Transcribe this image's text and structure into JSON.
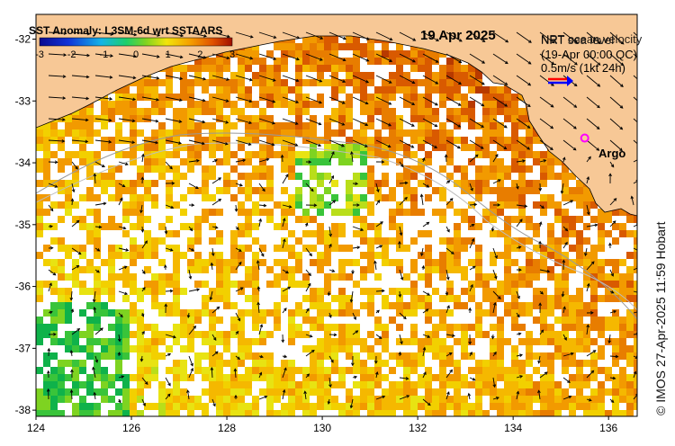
{
  "map": {
    "title": "SST Anomaly: L3SM-6d wrt SSTAARS",
    "date": "19 Apr 2025",
    "colorbar": {
      "min": -3,
      "max": 3,
      "ticks": [
        "-3",
        "-2",
        "-1",
        "0",
        "1",
        "2",
        "3"
      ]
    },
    "legend": {
      "line1": "NRT ocean velocity",
      "line1_overlay": "NRT sea level",
      "line2": "(19-Apr 00:00 QC)",
      "scale_label": "0.5m/s (1kt 24h)",
      "argo_label": "Argo"
    },
    "credit": "© IMOS 27-Apr-2025 11:59 Hobart",
    "lat_ticks": [
      "-32",
      "-33",
      "-34",
      "-35",
      "-36",
      "-37",
      "-38"
    ],
    "lon_ticks": [
      "124",
      "126",
      "128",
      "130",
      "132",
      "134",
      "136"
    ],
    "lat_range": [
      -38.1,
      -31.6
    ],
    "lon_range": [
      124,
      136.6
    ],
    "argo_float": {
      "lat": -33.6,
      "lon": 135.5
    },
    "colors": {
      "land": "#f7c896",
      "background": "#ffffff",
      "text": "#000000",
      "argo_marker": "#ff00ff",
      "velocity_vector": "#000000",
      "scale_arrow_red": "#ff0000",
      "scale_arrow_blue": "#0000ff"
    }
  }
}
